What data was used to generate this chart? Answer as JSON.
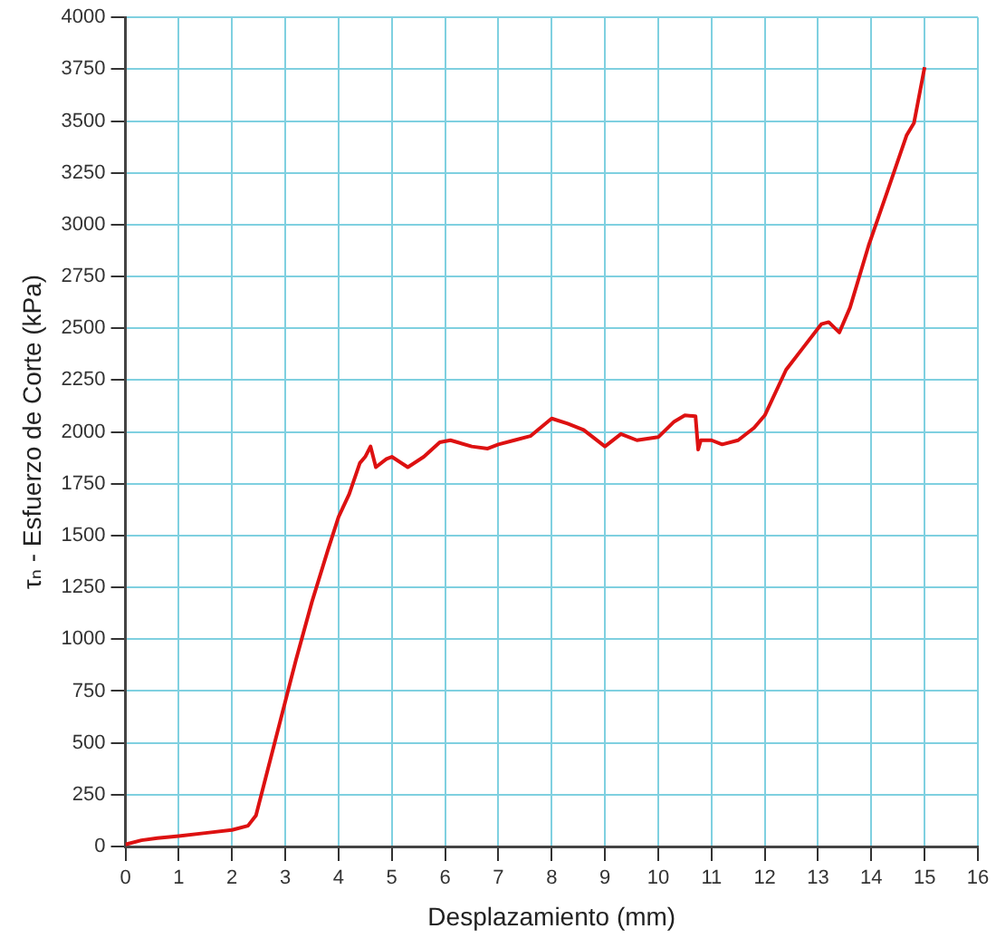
{
  "chart_data": {
    "type": "line",
    "xlabel": "Desplazamiento (mm)",
    "ylabel": "τₙ - Esfuerzo de Corte (kPa)",
    "xlim": [
      0,
      16
    ],
    "xticks": [
      0,
      1,
      2,
      3,
      4,
      5,
      6,
      7,
      8,
      9,
      10,
      11,
      12,
      13,
      14,
      15,
      16
    ],
    "ylim": [
      0,
      4000
    ],
    "yticks": [
      0,
      250,
      500,
      750,
      1000,
      1250,
      1500,
      1750,
      2000,
      2250,
      2500,
      2750,
      3000,
      3250,
      3500,
      3750,
      4000
    ],
    "grid": true,
    "legend": false,
    "marker": "none",
    "line_style": "solid",
    "series": [
      {
        "color": "#dd1111",
        "x": [
          0,
          0.3,
          0.6,
          1,
          1.5,
          2,
          2.3,
          2.45,
          2.6,
          2.8,
          3,
          3.2,
          3.5,
          3.8,
          4,
          4.2,
          4.4,
          4.5,
          4.6,
          4.7,
          4.9,
          5,
          5.3,
          5.6,
          5.9,
          6.1,
          6.5,
          6.8,
          7,
          7.3,
          7.6,
          8,
          8.3,
          8.6,
          9,
          9.3,
          9.6,
          10,
          10.3,
          10.5,
          10.7,
          10.75,
          10.8,
          11,
          11.2,
          11.5,
          11.8,
          12,
          12.4,
          12.7,
          13.06,
          13.2,
          13.4,
          13.6,
          13.95,
          14.3,
          14.66,
          14.8,
          15.0
        ],
        "values": [
          10,
          30,
          40,
          50,
          65,
          80,
          100,
          150,
          300,
          500,
          700,
          900,
          1180,
          1430,
          1590,
          1700,
          1850,
          1880,
          1930,
          1830,
          1870,
          1880,
          1830,
          1880,
          1950,
          1960,
          1930,
          1920,
          1940,
          1960,
          1980,
          2065,
          2040,
          2010,
          1930,
          1990,
          1960,
          1975,
          2050,
          2080,
          2076,
          1915,
          1960,
          1960,
          1940,
          1960,
          2020,
          2080,
          2300,
          2400,
          2520,
          2530,
          2480,
          2600,
          2900,
          3160,
          3430,
          3490,
          3760
        ]
      }
    ]
  }
}
